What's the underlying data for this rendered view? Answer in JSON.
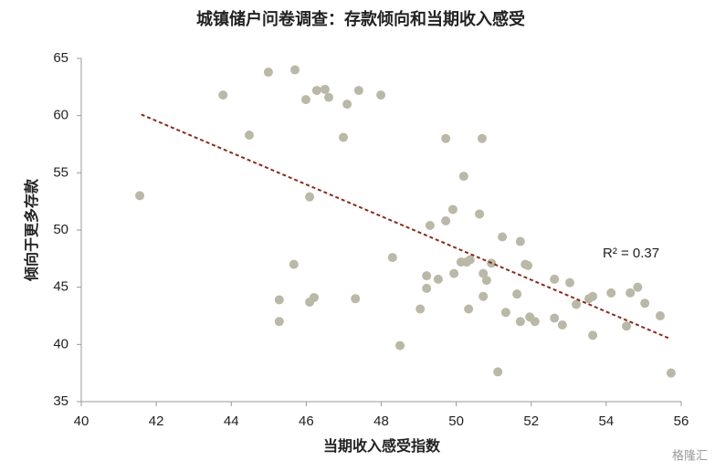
{
  "chart_data": {
    "type": "scatter",
    "title": "城镇储户问卷调查：存款倾向和当期收入感受",
    "x_label": "当期收入感受指数",
    "y_label": "倾向于更多存款",
    "color": "#bab8a6",
    "x": [
      41.56,
      43.78,
      44.48,
      44.99,
      45.7,
      45.28,
      45.28,
      45.67,
      45.99,
      46.09,
      46.09,
      46.21,
      46.28,
      46.5,
      46.6,
      46.99,
      47.09,
      47.31,
      47.4,
      47.99,
      48.3,
      48.5,
      49.04,
      49.21,
      49.21,
      49.3,
      49.52,
      49.72,
      49.72,
      49.91,
      49.94,
      50.13,
      50.2,
      50.28,
      50.33,
      50.37,
      50.62,
      50.69,
      50.72,
      50.72,
      50.81,
      50.94,
      51.11,
      51.23,
      51.32,
      51.62,
      51.71,
      51.71,
      51.84,
      51.91,
      51.96,
      52.1,
      52.62,
      52.62,
      52.83,
      53.03,
      53.2,
      53.54,
      53.64,
      53.64,
      54.13,
      54.54,
      54.64,
      54.84,
      55.03,
      55.44,
      55.73
    ],
    "values": [
      53.0,
      61.8,
      58.3,
      63.8,
      64.0,
      43.9,
      42.0,
      47.0,
      61.4,
      52.9,
      43.7,
      44.1,
      62.2,
      62.3,
      61.6,
      58.1,
      61.0,
      44.0,
      62.2,
      61.8,
      47.6,
      39.9,
      43.1,
      46.0,
      44.9,
      50.4,
      45.7,
      58.0,
      50.8,
      51.8,
      46.2,
      47.2,
      54.7,
      47.2,
      43.1,
      47.4,
      51.4,
      58.0,
      46.2,
      44.2,
      45.6,
      47.1,
      37.6,
      49.4,
      42.8,
      44.4,
      49.0,
      42.0,
      47.0,
      46.9,
      42.4,
      42.0,
      45.7,
      42.3,
      41.7,
      45.4,
      43.5,
      44.0,
      44.2,
      40.8,
      44.5,
      41.6,
      44.5,
      45.0,
      43.6,
      42.5,
      37.5
    ],
    "trendline": {
      "x": [
        41.6,
        55.7
      ],
      "y": [
        60.1,
        40.5
      ],
      "color": "#8b2a1a"
    },
    "annotation": "R² = 0.37",
    "xlim": [
      40,
      56
    ],
    "xticks": [
      40,
      42,
      44,
      46,
      48,
      50,
      52,
      54,
      56
    ],
    "ylim": [
      35,
      65
    ],
    "yticks": [
      35,
      40,
      45,
      50,
      55,
      60,
      65
    ],
    "grid": false
  },
  "watermark": "格隆汇"
}
